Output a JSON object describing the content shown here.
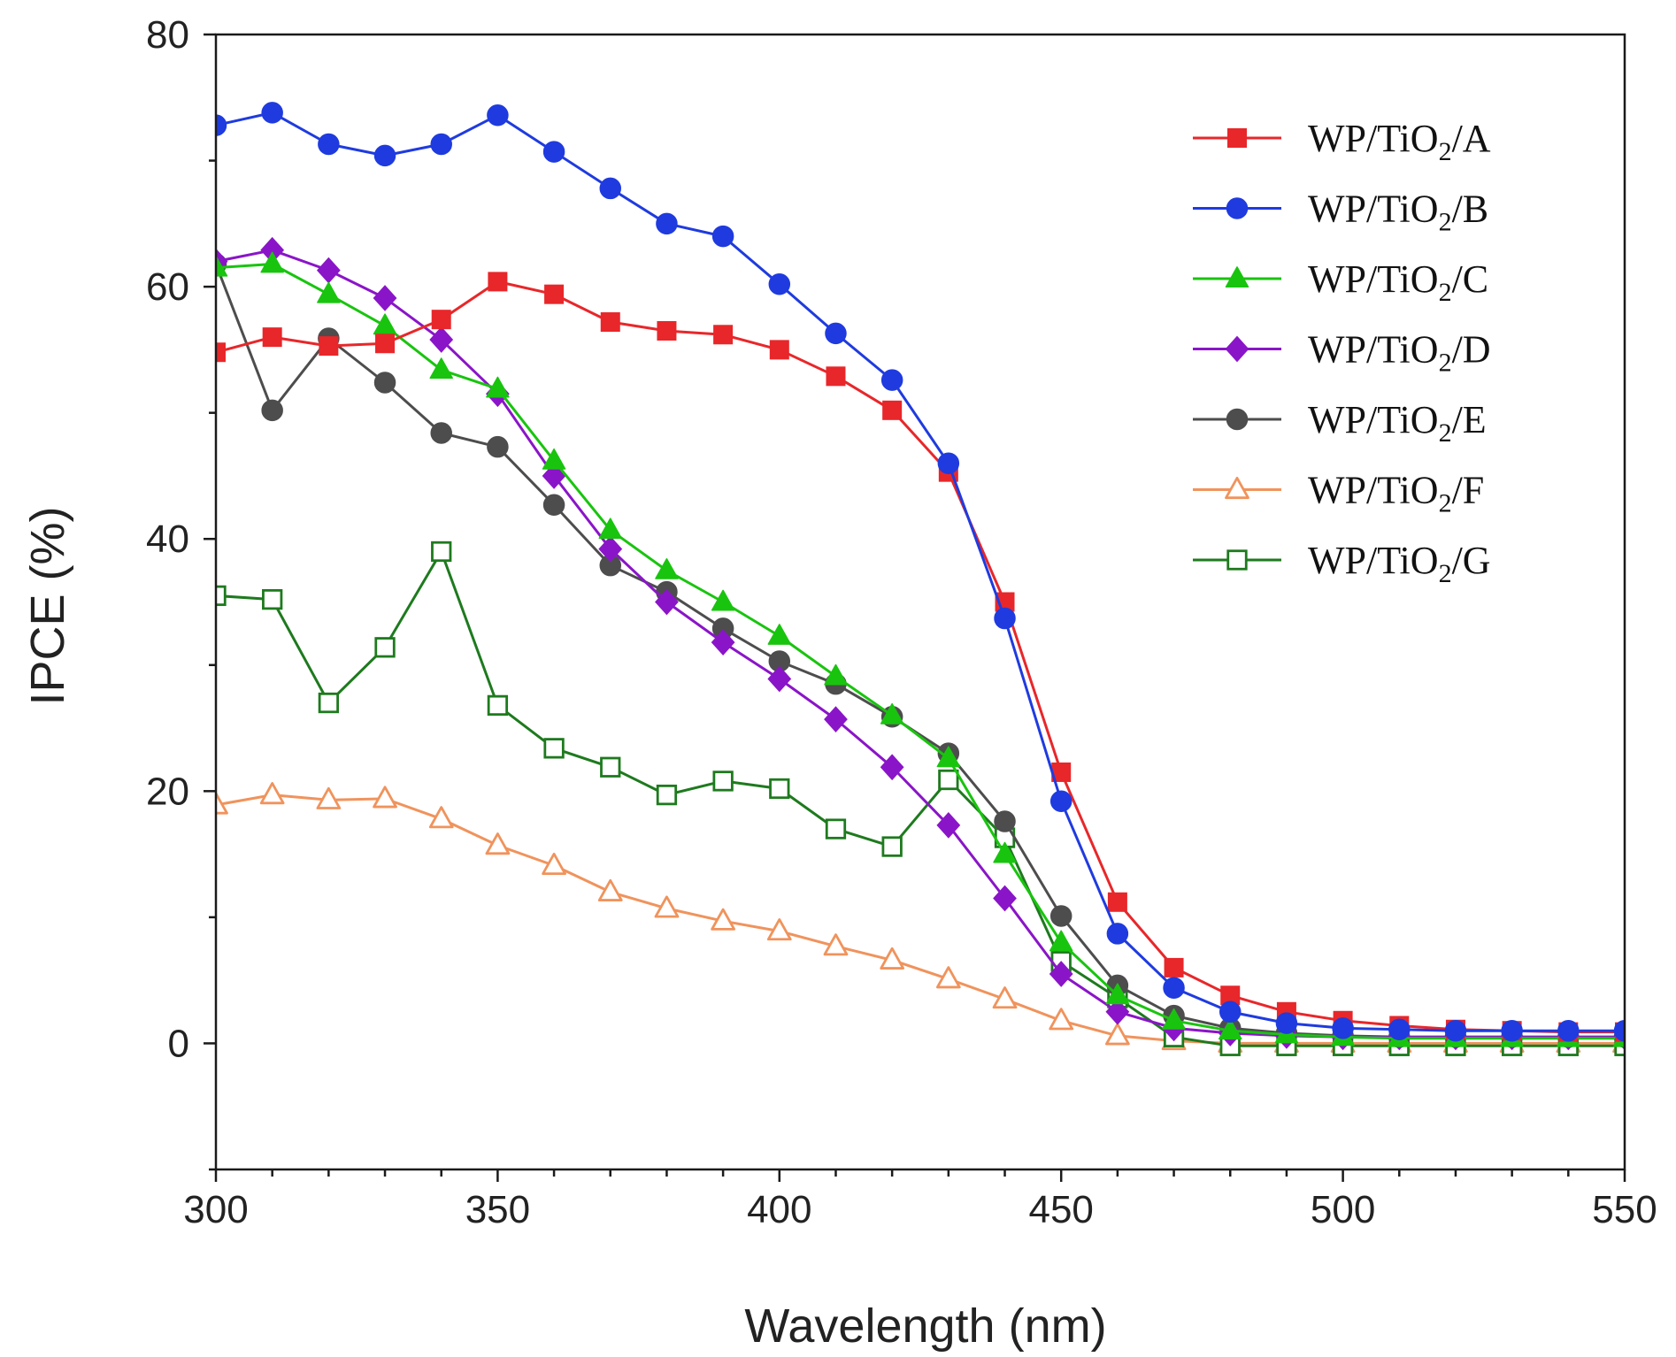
{
  "chart_data": {
    "type": "line",
    "title": "",
    "xlabel": "Wavelength (nm)",
    "ylabel": "IPCE (%)",
    "xlim": [
      300,
      550
    ],
    "ylim": [
      -10,
      80
    ],
    "xticks": [
      300,
      350,
      400,
      450,
      500,
      550
    ],
    "yticks": [
      0,
      20,
      40,
      60,
      80
    ],
    "xtick_labels": [
      "300",
      "350",
      "400",
      "450",
      "500",
      "550"
    ],
    "ytick_labels": [
      "0",
      "20",
      "40",
      "60",
      "80"
    ],
    "legend_position": "top-right",
    "grid": false,
    "x": [
      300,
      310,
      320,
      330,
      340,
      350,
      360,
      370,
      380,
      390,
      400,
      410,
      420,
      430,
      440,
      450,
      460,
      470,
      480,
      490,
      500,
      510,
      520,
      530,
      540,
      550
    ],
    "series": [
      {
        "name": "A",
        "legend_prefix": "WP/TiO",
        "legend_sub": "2",
        "legend_suffix": "/A",
        "color": "#e8272a",
        "marker": "square",
        "filled": true,
        "values": [
          54.8,
          56.0,
          55.3,
          55.5,
          57.4,
          60.4,
          59.4,
          57.2,
          56.5,
          56.2,
          55.0,
          52.9,
          50.2,
          45.3,
          35.0,
          21.5,
          11.2,
          6.0,
          3.8,
          2.5,
          1.8,
          1.4,
          1.1,
          1.0,
          0.9,
          0.9
        ]
      },
      {
        "name": "B",
        "legend_prefix": "WP/TiO",
        "legend_sub": "2",
        "legend_suffix": "/B",
        "color": "#1f3bdf",
        "marker": "circle",
        "filled": true,
        "values": [
          72.8,
          73.8,
          71.3,
          70.4,
          71.3,
          73.6,
          70.7,
          67.8,
          65.0,
          64.0,
          60.2,
          56.3,
          52.6,
          46.0,
          33.7,
          19.2,
          8.7,
          4.4,
          2.5,
          1.6,
          1.2,
          1.1,
          1.0,
          1.0,
          1.0,
          1.0
        ]
      },
      {
        "name": "C",
        "legend_prefix": "WP/TiO",
        "legend_sub": "2",
        "legend_suffix": "/C",
        "color": "#19c40f",
        "marker": "triangle",
        "filled": true,
        "values": [
          61.5,
          61.8,
          59.4,
          56.9,
          53.4,
          51.9,
          46.2,
          40.7,
          37.5,
          35.0,
          32.3,
          29.1,
          26.0,
          22.6,
          15.0,
          8.0,
          3.8,
          1.8,
          1.0,
          0.7,
          0.5,
          0.4,
          0.4,
          0.4,
          0.4,
          0.4
        ]
      },
      {
        "name": "D",
        "legend_prefix": "WP/TiO",
        "legend_sub": "2",
        "legend_suffix": "/D",
        "color": "#8a15c8",
        "marker": "diamond",
        "filled": true,
        "values": [
          62.0,
          62.9,
          61.3,
          59.1,
          55.8,
          51.5,
          45.0,
          39.2,
          35.0,
          31.8,
          28.9,
          25.7,
          21.9,
          17.3,
          11.5,
          5.5,
          2.5,
          1.2,
          0.8,
          0.6,
          0.5,
          0.5,
          0.5,
          0.5,
          0.5,
          0.5
        ]
      },
      {
        "name": "E",
        "legend_prefix": "WP/TiO",
        "legend_sub": "2",
        "legend_suffix": "/E",
        "color": "#4d4d4d",
        "marker": "circle",
        "filled": true,
        "values": [
          61.8,
          50.2,
          55.9,
          52.4,
          48.4,
          47.3,
          42.7,
          37.9,
          35.8,
          32.9,
          30.3,
          28.5,
          25.9,
          23.0,
          17.6,
          10.1,
          4.6,
          2.2,
          1.2,
          0.8,
          0.6,
          0.5,
          0.5,
          0.5,
          0.5,
          0.5
        ]
      },
      {
        "name": "F",
        "legend_prefix": "WP/TiO",
        "legend_sub": "2",
        "legend_suffix": "/F",
        "color": "#f0935c",
        "marker": "triangle",
        "filled": false,
        "values": [
          18.9,
          19.7,
          19.3,
          19.4,
          17.8,
          15.7,
          14.1,
          12.0,
          10.7,
          9.7,
          8.9,
          7.7,
          6.6,
          5.1,
          3.5,
          1.8,
          0.6,
          0.2,
          0.0,
          0.0,
          0.0,
          0.0,
          0.0,
          0.0,
          0.0,
          0.0
        ]
      },
      {
        "name": "G",
        "legend_prefix": "WP/TiO",
        "legend_sub": "2",
        "legend_suffix": "/G",
        "color": "#1e7a1e",
        "marker": "square",
        "filled": false,
        "values": [
          35.5,
          35.2,
          27.0,
          31.4,
          39.0,
          26.8,
          23.4,
          21.9,
          19.7,
          20.8,
          20.2,
          17.0,
          15.6,
          20.9,
          16.3,
          6.5,
          3.6,
          0.5,
          -0.2,
          -0.2,
          -0.2,
          -0.2,
          -0.2,
          -0.2,
          -0.2,
          -0.2
        ]
      }
    ]
  }
}
